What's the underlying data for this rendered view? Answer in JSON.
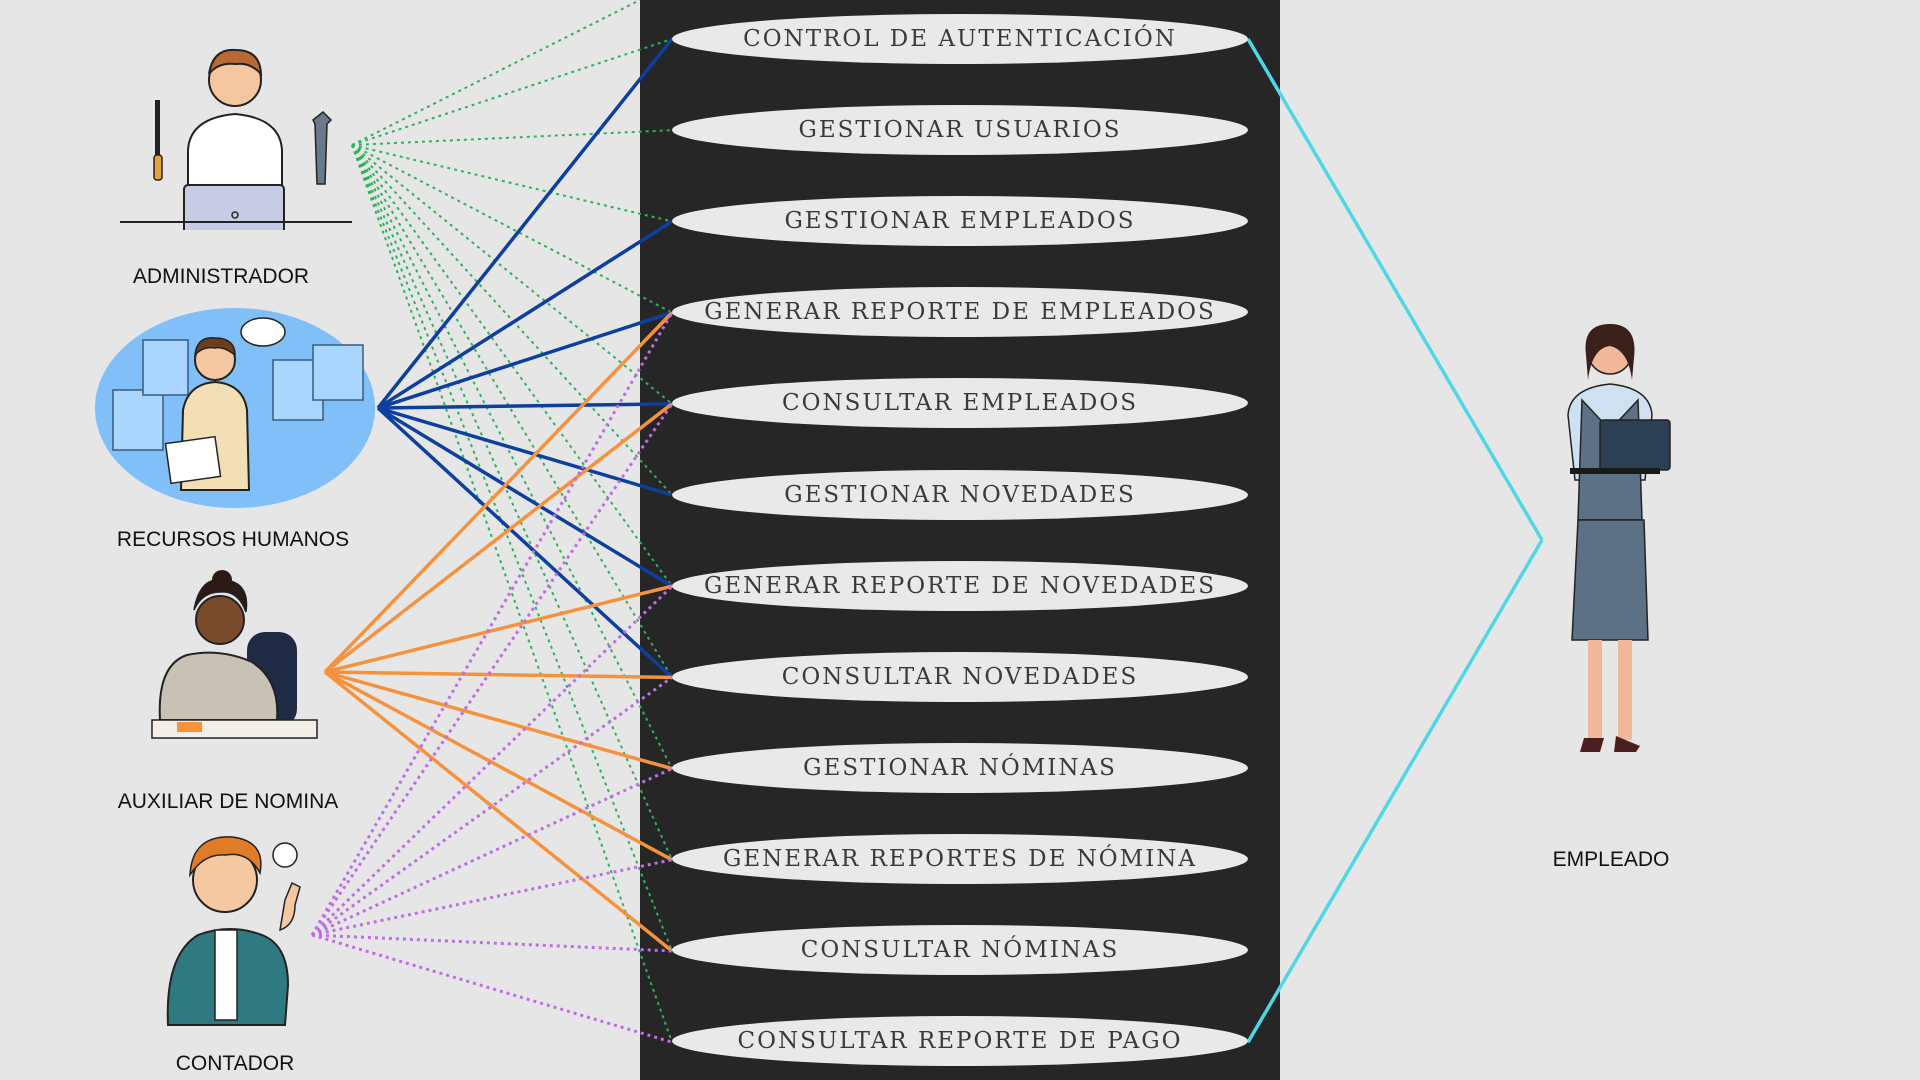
{
  "actors": {
    "administrador": "ADMINISTRADOR",
    "recursos_humanos": "RECURSOS HUMANOS",
    "auxiliar_nomina": "AUXILIAR DE NOMINA",
    "contador": "CONTADOR",
    "empleado": "EMPLEADO"
  },
  "use_cases": [
    "CONTROL DE AUTENTICACIÓN",
    "GESTIONAR USUARIOS",
    "GESTIONAR EMPLEADOS",
    "GENERAR REPORTE DE EMPLEADOS",
    "CONSULTAR EMPLEADOS",
    "GESTIONAR NOVEDADES",
    "GENERAR REPORTE DE NOVEDADES",
    "CONSULTAR NOVEDADES",
    "GESTIONAR NÓMINAS",
    "GENERAR REPORTES DE NÓMINA",
    "CONSULTAR NÓMINAS",
    "CONSULTAR REPORTE DE PAGO"
  ],
  "colors": {
    "administrador_links": "#2db35a",
    "recursos_humanos_links": "#0d3f9e",
    "auxiliar_nomina_links": "#f5923e",
    "contador_links": "#c06ce6",
    "empleado_links": "#4ed8e6",
    "system_panel": "#262626",
    "use_case_fill": "#e9e9e9"
  },
  "associations": {
    "administrador": [
      0,
      1,
      2,
      3,
      4,
      5,
      6,
      7,
      8,
      9,
      10,
      11
    ],
    "recursos_humanos": [
      0,
      2,
      3,
      4,
      5,
      6,
      7
    ],
    "auxiliar_nomina": [
      3,
      4,
      6,
      7,
      8,
      9,
      10
    ],
    "contador": [
      3,
      4,
      6,
      7,
      8,
      9,
      10,
      11
    ],
    "empleado": [
      0,
      11
    ]
  }
}
